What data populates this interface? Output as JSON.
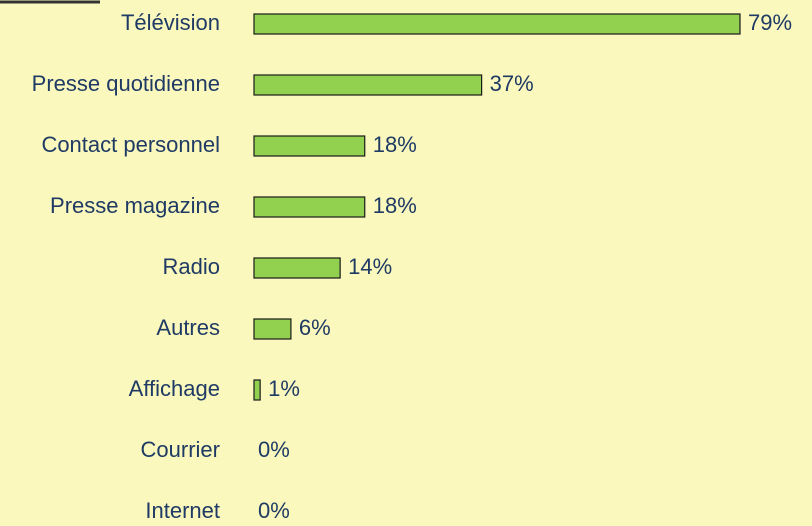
{
  "chart_data": {
    "type": "bar",
    "orientation": "horizontal",
    "categories": [
      "Télévision",
      "Presse quotidienne",
      "Contact personnel",
      "Presse magazine",
      "Radio",
      "Autres",
      "Affichage",
      "Courrier",
      "Internet"
    ],
    "values": [
      79,
      37,
      18,
      18,
      14,
      6,
      1,
      0,
      0
    ],
    "value_labels": [
      "79%",
      "37%",
      "18%",
      "18%",
      "14%",
      "6%",
      "1%",
      "0%",
      "0%"
    ],
    "color": "#92d050"
  }
}
